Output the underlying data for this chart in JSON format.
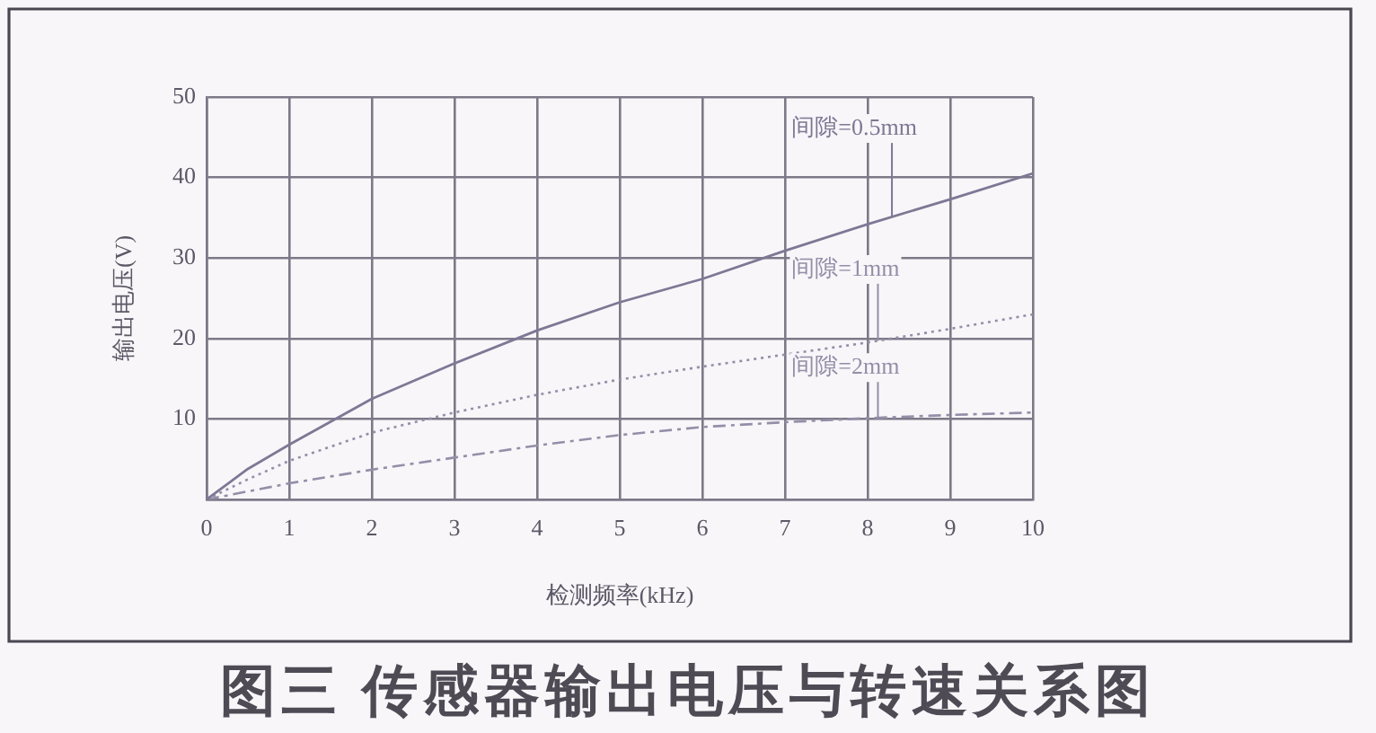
{
  "chart_data": {
    "type": "line",
    "title": "图三 传感器输出电压与转速关系图",
    "xlabel": "检测频率(kHz)",
    "ylabel": "输出电压(V)",
    "x": [
      0,
      0.5,
      1,
      2,
      3,
      4,
      5,
      6,
      7,
      8,
      9,
      10
    ],
    "series": [
      {
        "name": "间隙=0.5mm",
        "color": "#7f7794",
        "line_style": "solid",
        "values": [
          0,
          3.8,
          6.8,
          12.5,
          16.9,
          21,
          24.5,
          27.4,
          30.9,
          34.2,
          37.3,
          40.5
        ]
      },
      {
        "name": "间隙=1mm",
        "color": "#958ea8",
        "line_style": "dotted",
        "values": [
          0,
          2.5,
          4.8,
          8.3,
          10.8,
          13,
          14.9,
          16.5,
          18,
          19.5,
          21.2,
          23
        ]
      },
      {
        "name": "间隙=2mm",
        "color": "#958ea8",
        "line_style": "dashed",
        "values": [
          0,
          1,
          2,
          3.7,
          5.2,
          6.7,
          8,
          9,
          9.6,
          10.1,
          10.5,
          10.8
        ]
      }
    ],
    "xlim": [
      0,
      10
    ],
    "xticks": [
      0,
      1,
      2,
      3,
      4,
      5,
      6,
      7,
      8,
      9,
      10
    ],
    "ylim": [
      0,
      50
    ],
    "yticks": [
      {
        "value": 0,
        "label": null
      },
      10,
      20,
      30,
      40,
      50
    ],
    "grid": true,
    "legend": false,
    "marker": "none"
  }
}
